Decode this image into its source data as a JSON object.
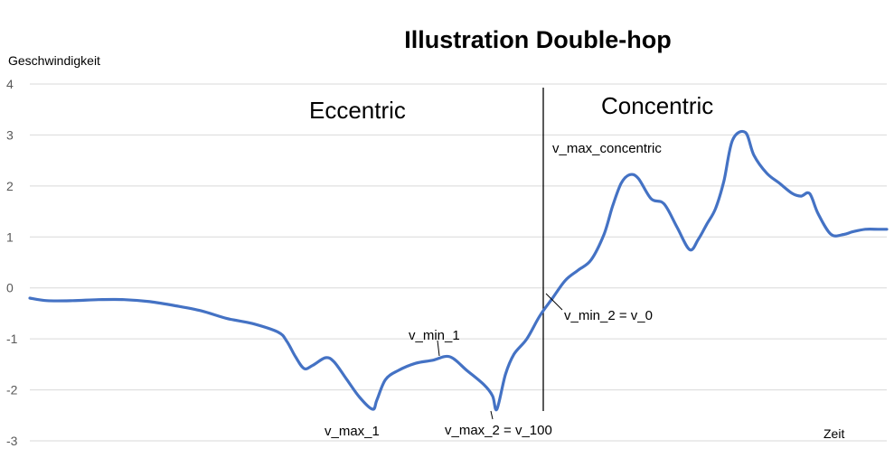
{
  "chart_data": {
    "type": "line",
    "title": "Illustration Double-hop",
    "xlabel": "Zeit",
    "ylabel": "Geschwindigkeit",
    "ylim": [
      -3,
      4
    ],
    "yticks": [
      "4",
      "3",
      "2",
      "1",
      "0",
      "-1",
      "-2",
      "-3"
    ],
    "grid": true,
    "line_color": "#4472c4",
    "phases": [
      "Eccentric",
      "Concentric"
    ],
    "annotations": [
      "v_max_concentric",
      "v_min_2 = v_0",
      "v_min_1",
      "v_max_1",
      "v_max_2 = v_100"
    ],
    "x": [
      0,
      0.02,
      0.05,
      0.08,
      0.11,
      0.14,
      0.17,
      0.2,
      0.23,
      0.26,
      0.29,
      0.3,
      0.31,
      0.32,
      0.33,
      0.345,
      0.355,
      0.37,
      0.385,
      0.4,
      0.405,
      0.415,
      0.43,
      0.45,
      0.47,
      0.49,
      0.51,
      0.53,
      0.54,
      0.545,
      0.555,
      0.565,
      0.58,
      0.595,
      0.61,
      0.625,
      0.64,
      0.655,
      0.67,
      0.68,
      0.69,
      0.7,
      0.71,
      0.725,
      0.74,
      0.755,
      0.77,
      0.78,
      0.79,
      0.8,
      0.81,
      0.82,
      0.835,
      0.845,
      0.86,
      0.875,
      0.89,
      0.9,
      0.91,
      0.92,
      0.935,
      0.95,
      0.96,
      0.975,
      0.99,
      1
    ],
    "values": [
      -0.2,
      -0.25,
      -0.25,
      -0.23,
      -0.23,
      -0.27,
      -0.35,
      -0.45,
      -0.6,
      -0.7,
      -0.87,
      -1.05,
      -1.35,
      -1.58,
      -1.52,
      -1.37,
      -1.45,
      -1.8,
      -2.15,
      -2.38,
      -2.2,
      -1.8,
      -1.62,
      -1.48,
      -1.42,
      -1.35,
      -1.62,
      -1.9,
      -2.12,
      -2.38,
      -1.7,
      -1.3,
      -1.0,
      -0.55,
      -0.2,
      0.15,
      0.35,
      0.55,
      1.05,
      1.6,
      2.05,
      2.22,
      2.15,
      1.75,
      1.65,
      1.2,
      0.75,
      0.95,
      1.25,
      1.55,
      2.1,
      2.9,
      3.05,
      2.6,
      2.25,
      2.05,
      1.85,
      1.8,
      1.85,
      1.45,
      1.05,
      1.05,
      1.1,
      1.15,
      1.15,
      1.15
    ]
  }
}
